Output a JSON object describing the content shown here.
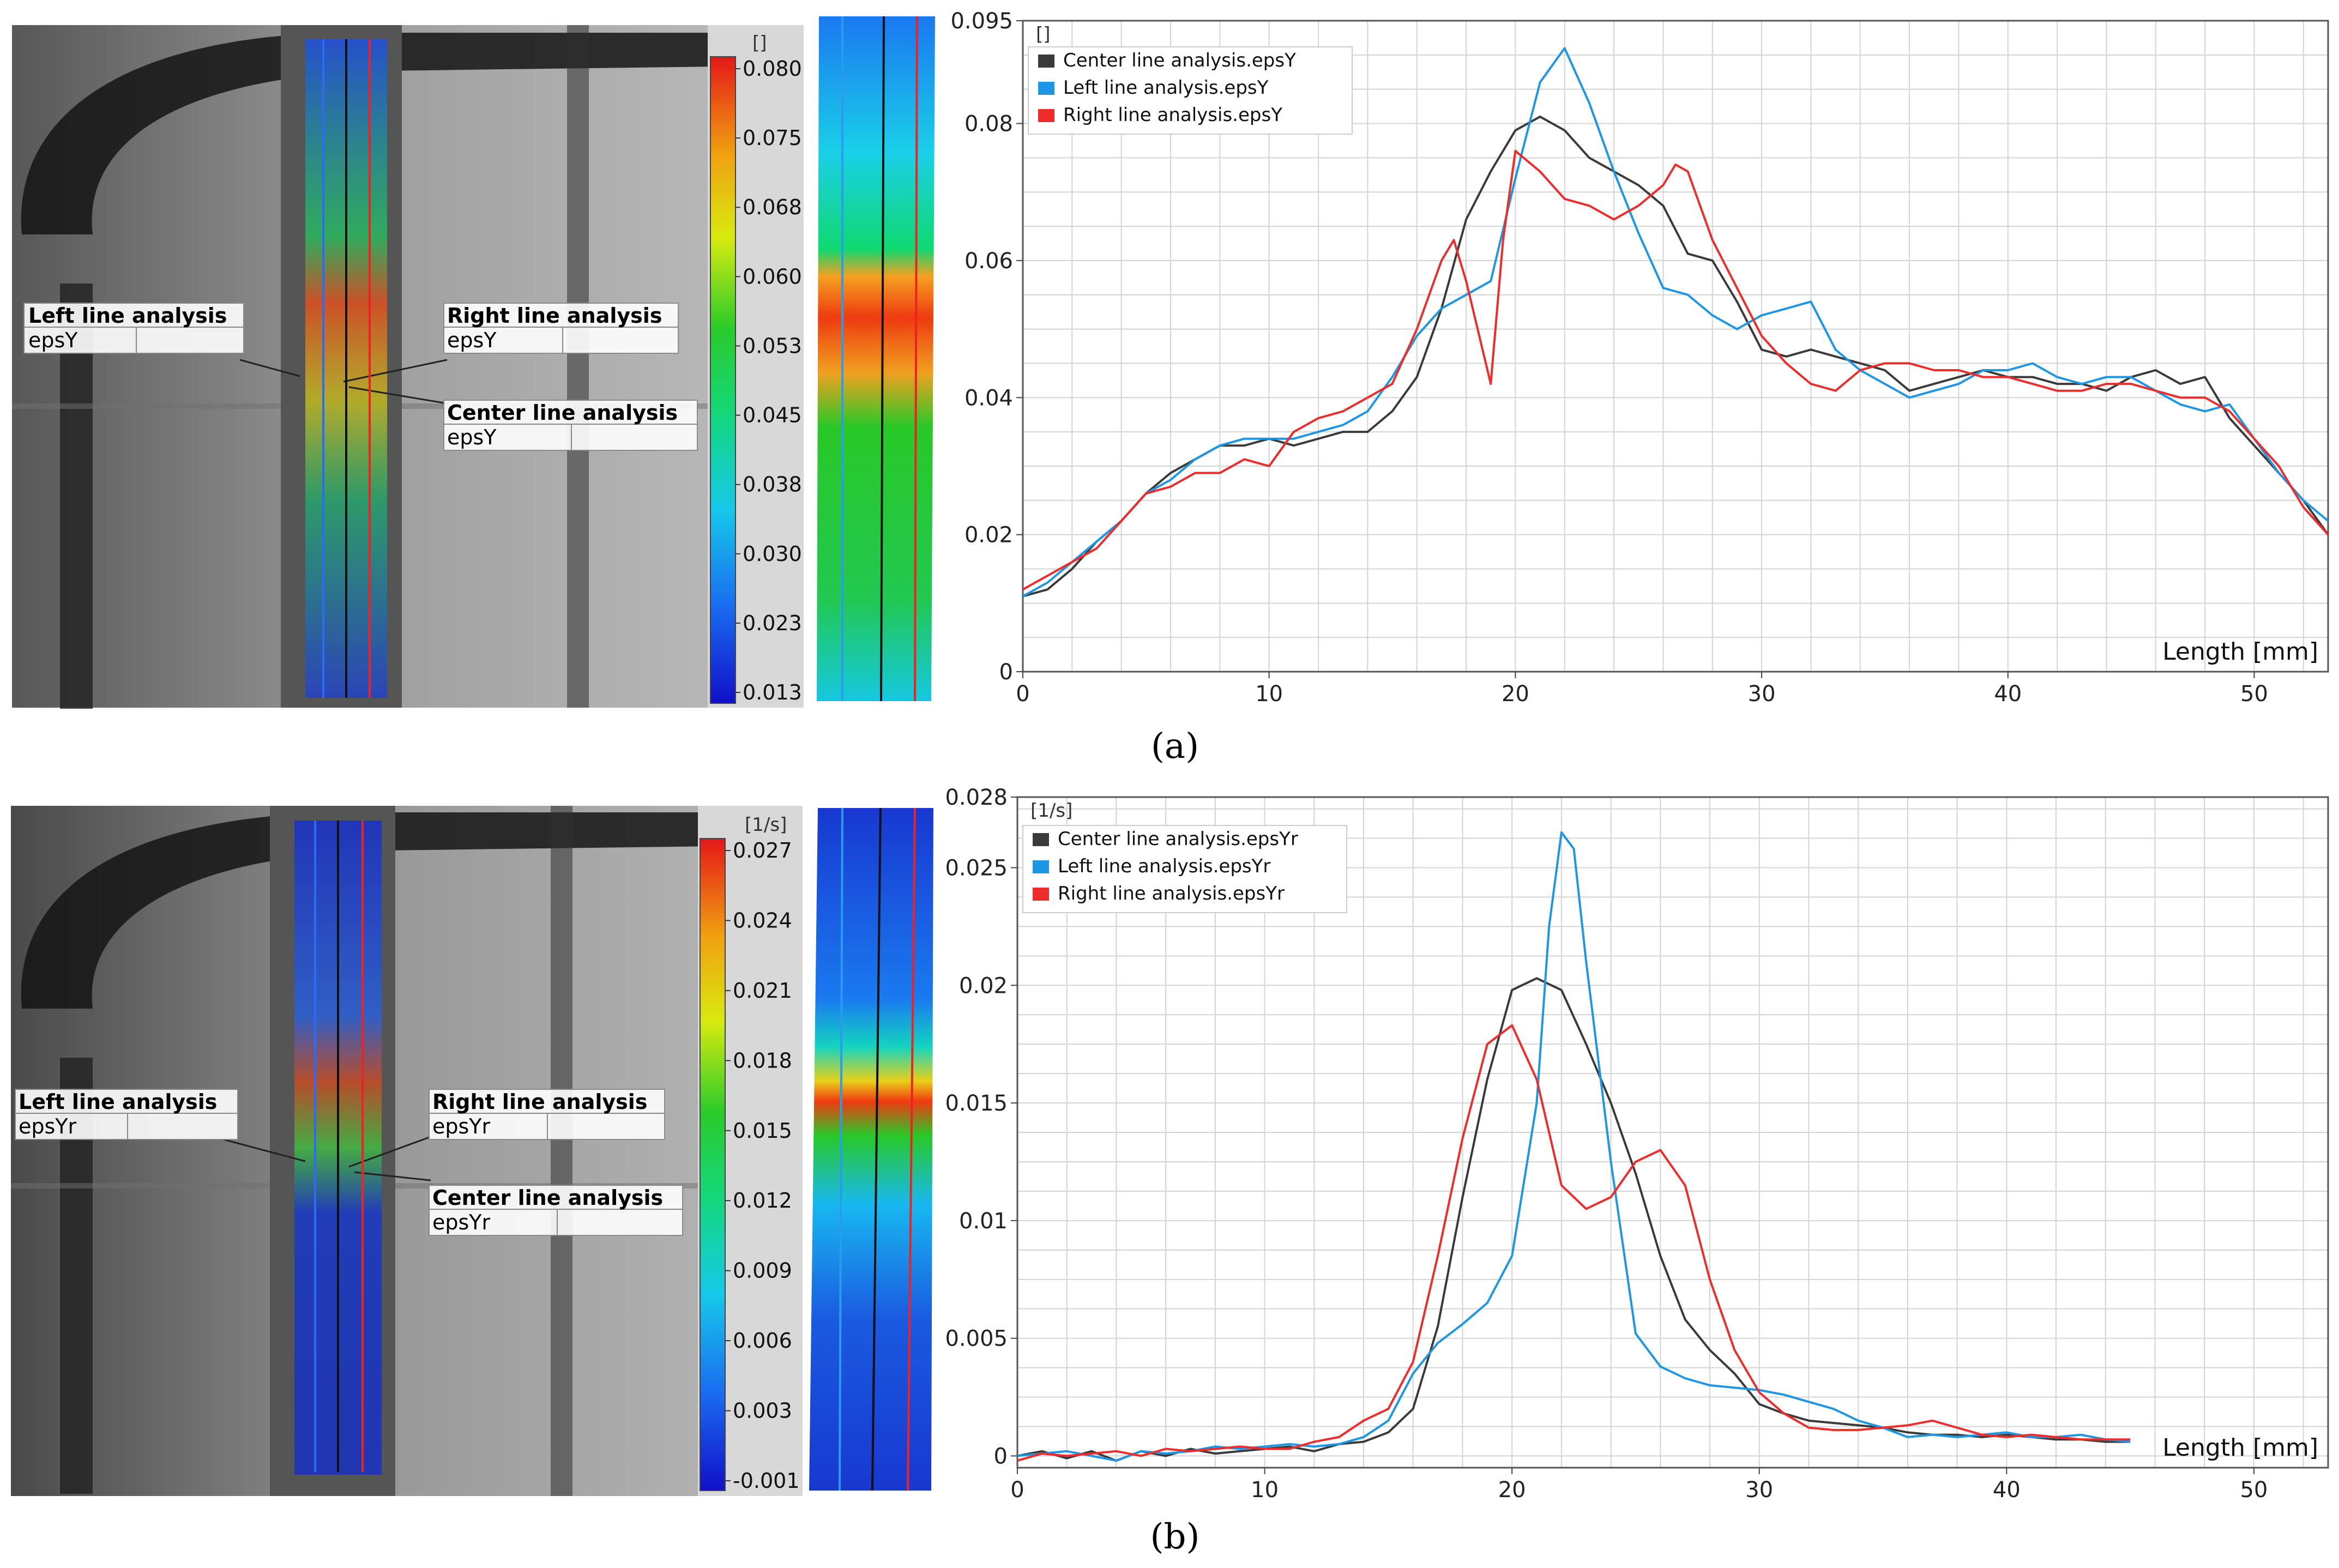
{
  "panels": [
    {
      "caption_letter": "a",
      "annotations": {
        "left": {
          "title": "Left line analysis",
          "value": "epsY"
        },
        "right": {
          "title": "Right line analysis",
          "value": "epsY"
        },
        "center": {
          "title": "Center line analysis",
          "value": "epsY"
        }
      },
      "colorbar": {
        "unit": "[]",
        "ticks": [
          "0.080",
          "0.075",
          "0.068",
          "0.060",
          "0.053",
          "0.045",
          "0.038",
          "0.030",
          "0.023",
          "0.013"
        ]
      },
      "chart_data": {
        "type": "line",
        "unit_label": "[]",
        "xlabel": "Length [mm]",
        "ylabel": "",
        "xlim": [
          0,
          53
        ],
        "ylim": [
          0,
          0.095
        ],
        "xticks": [
          0,
          10,
          20,
          30,
          40,
          50
        ],
        "xtick_labels": [
          "0",
          "10",
          "20",
          "30",
          "40",
          "50"
        ],
        "yticks": [
          0,
          0.02,
          0.04,
          0.06,
          0.08,
          0.095
        ],
        "ytick_labels": [
          "0",
          "0.02",
          "0.04",
          "0.06",
          "0.08",
          "0.095"
        ],
        "series": [
          {
            "name": "Center line analysis.epsY",
            "color": "#3a3a3a",
            "x": [
              0,
              1,
              2,
              3,
              4,
              5,
              6,
              7,
              8,
              9,
              10,
              11,
              12,
              13,
              14,
              15,
              16,
              17,
              18,
              19,
              20,
              21,
              22,
              23,
              24,
              25,
              26,
              27,
              28,
              29,
              30,
              31,
              32,
              33,
              34,
              35,
              36,
              37,
              38,
              39,
              40,
              41,
              42,
              43,
              44,
              45,
              46,
              47,
              48,
              49,
              50,
              51,
              52,
              53
            ],
            "y": [
              0.011,
              0.012,
              0.015,
              0.019,
              0.022,
              0.026,
              0.029,
              0.031,
              0.033,
              0.033,
              0.034,
              0.033,
              0.034,
              0.035,
              0.035,
              0.038,
              0.043,
              0.053,
              0.066,
              0.073,
              0.079,
              0.081,
              0.079,
              0.075,
              0.073,
              0.071,
              0.068,
              0.061,
              0.06,
              0.054,
              0.047,
              0.046,
              0.047,
              0.046,
              0.045,
              0.044,
              0.041,
              0.042,
              0.043,
              0.044,
              0.043,
              0.043,
              0.042,
              0.042,
              0.041,
              0.043,
              0.044,
              0.042,
              0.043,
              0.037,
              0.033,
              0.029,
              0.025,
              0.02
            ]
          },
          {
            "name": "Left line analysis.epsY",
            "color": "#1e96e6",
            "x": [
              0,
              1,
              2,
              3,
              4,
              5,
              6,
              7,
              8,
              9,
              10,
              11,
              12,
              13,
              14,
              15,
              16,
              17,
              18,
              19,
              20,
              21,
              22,
              23,
              24,
              25,
              26,
              27,
              28,
              29,
              30,
              31,
              32,
              33,
              34,
              35,
              36,
              37,
              38,
              39,
              40,
              41,
              42,
              43,
              44,
              45,
              46,
              47,
              48,
              49,
              50,
              51,
              52,
              53
            ],
            "y": [
              0.011,
              0.013,
              0.016,
              0.019,
              0.022,
              0.026,
              0.028,
              0.031,
              0.033,
              0.034,
              0.034,
              0.034,
              0.035,
              0.036,
              0.038,
              0.043,
              0.049,
              0.053,
              0.055,
              0.057,
              0.072,
              0.086,
              0.091,
              0.083,
              0.073,
              0.064,
              0.056,
              0.055,
              0.052,
              0.05,
              0.052,
              0.053,
              0.054,
              0.047,
              0.044,
              0.042,
              0.04,
              0.041,
              0.042,
              0.044,
              0.044,
              0.045,
              0.043,
              0.042,
              0.043,
              0.043,
              0.041,
              0.039,
              0.038,
              0.039,
              0.034,
              0.029,
              0.025,
              0.022
            ]
          },
          {
            "name": "Right line analysis.epsY",
            "color": "#ee2c2c",
            "x": [
              0,
              1,
              2,
              3,
              4,
              5,
              6,
              7,
              8,
              9,
              10,
              11,
              12,
              13,
              14,
              15,
              16,
              17,
              17.5,
              18,
              19,
              19.5,
              20,
              21,
              22,
              23,
              24,
              25,
              26,
              26.5,
              27,
              28,
              29,
              30,
              31,
              32,
              33,
              34,
              35,
              36,
              37,
              38,
              39,
              40,
              41,
              42,
              43,
              44,
              45,
              46,
              47,
              48,
              49,
              50,
              51,
              52,
              53
            ],
            "y": [
              0.012,
              0.014,
              0.016,
              0.018,
              0.022,
              0.026,
              0.027,
              0.029,
              0.029,
              0.031,
              0.03,
              0.035,
              0.037,
              0.038,
              0.04,
              0.042,
              0.05,
              0.06,
              0.063,
              0.057,
              0.042,
              0.063,
              0.076,
              0.073,
              0.069,
              0.068,
              0.066,
              0.068,
              0.071,
              0.074,
              0.073,
              0.063,
              0.056,
              0.049,
              0.045,
              0.042,
              0.041,
              0.044,
              0.045,
              0.045,
              0.044,
              0.044,
              0.043,
              0.043,
              0.042,
              0.041,
              0.041,
              0.042,
              0.042,
              0.041,
              0.04,
              0.04,
              0.038,
              0.034,
              0.03,
              0.024,
              0.02
            ]
          }
        ]
      }
    },
    {
      "caption_letter": "b",
      "annotations": {
        "left": {
          "title": "Left line analysis",
          "value": "epsYr"
        },
        "right": {
          "title": "Right line analysis",
          "value": "epsYr"
        },
        "center": {
          "title": "Center line analysis",
          "value": "epsYr"
        }
      },
      "colorbar": {
        "unit": "[1/s]",
        "ticks": [
          "0.027",
          "0.024",
          "0.021",
          "0.018",
          "0.015",
          "0.012",
          "0.009",
          "0.006",
          "0.003",
          "-0.001"
        ]
      },
      "chart_data": {
        "type": "line",
        "unit_label": "[1/s]",
        "xlabel": "Length [mm]",
        "ylabel": "",
        "xlim": [
          0,
          53
        ],
        "ylim": [
          -0.0005,
          0.028
        ],
        "xticks": [
          0,
          10,
          20,
          30,
          40,
          50
        ],
        "xtick_labels": [
          "0",
          "10",
          "20",
          "30",
          "40",
          "50"
        ],
        "yticks": [
          0,
          0.005,
          0.01,
          0.015,
          0.02,
          0.025,
          0.028
        ],
        "ytick_labels": [
          "0",
          "0.005",
          "0.01",
          "0.015",
          "0.02",
          "0.025",
          "0.028"
        ],
        "series": [
          {
            "name": "Center line analysis.epsYr",
            "color": "#3a3a3a",
            "x": [
              0,
              1,
              2,
              3,
              4,
              5,
              6,
              7,
              8,
              9,
              10,
              11,
              12,
              13,
              14,
              15,
              16,
              17,
              18,
              19,
              20,
              21,
              22,
              23,
              24,
              25,
              26,
              27,
              28,
              29,
              30,
              31,
              32,
              33,
              34,
              35,
              36,
              37,
              38,
              39,
              40,
              41,
              42,
              43,
              44,
              45
            ],
            "y": [
              0.0,
              0.0002,
              -0.0001,
              0.0002,
              -0.0002,
              0.0002,
              0.0,
              0.0003,
              0.0001,
              0.0002,
              0.0003,
              0.0004,
              0.0002,
              0.0005,
              0.0006,
              0.001,
              0.002,
              0.0055,
              0.011,
              0.016,
              0.0198,
              0.0203,
              0.0198,
              0.0175,
              0.015,
              0.012,
              0.0085,
              0.0058,
              0.0045,
              0.0035,
              0.0022,
              0.0018,
              0.0015,
              0.0014,
              0.0013,
              0.0012,
              0.001,
              0.0009,
              0.0009,
              0.0008,
              0.0009,
              0.0008,
              0.0007,
              0.0007,
              0.0006,
              0.0006
            ]
          },
          {
            "name": "Left line analysis.epsYr",
            "color": "#1e96e6",
            "x": [
              0,
              1,
              2,
              3,
              4,
              5,
              6,
              7,
              8,
              9,
              10,
              11,
              12,
              13,
              14,
              15,
              16,
              17,
              18,
              19,
              20,
              21,
              21.5,
              22,
              22.5,
              23,
              24,
              25,
              26,
              27,
              28,
              29,
              30,
              31,
              32,
              33,
              34,
              35,
              36,
              37,
              38,
              39,
              40,
              41,
              42,
              43,
              44,
              45
            ],
            "y": [
              0.0,
              0.0001,
              0.0002,
              0.0,
              -0.0002,
              0.0002,
              0.0001,
              0.0002,
              0.0004,
              0.0003,
              0.0004,
              0.0005,
              0.0004,
              0.0005,
              0.0008,
              0.0015,
              0.0035,
              0.0048,
              0.0056,
              0.0065,
              0.0085,
              0.015,
              0.0225,
              0.0265,
              0.0258,
              0.021,
              0.0125,
              0.0052,
              0.0038,
              0.0033,
              0.003,
              0.0029,
              0.0028,
              0.0026,
              0.0023,
              0.002,
              0.0015,
              0.0012,
              0.0008,
              0.0009,
              0.0008,
              0.0009,
              0.001,
              0.0008,
              0.0008,
              0.0009,
              0.0007,
              0.0006
            ]
          },
          {
            "name": "Right line analysis.epsYr",
            "color": "#ee2c2c",
            "x": [
              0,
              1,
              2,
              3,
              4,
              5,
              6,
              7,
              8,
              9,
              10,
              11,
              12,
              13,
              14,
              15,
              16,
              17,
              18,
              19,
              20,
              21,
              22,
              23,
              24,
              25,
              26,
              27,
              28,
              29,
              30,
              31,
              32,
              33,
              34,
              35,
              36,
              37,
              38,
              39,
              40,
              41,
              42,
              43,
              44,
              45
            ],
            "y": [
              -0.0002,
              0.0001,
              0.0,
              0.0001,
              0.0002,
              0.0,
              0.0003,
              0.0002,
              0.0003,
              0.0004,
              0.0003,
              0.0003,
              0.0006,
              0.0008,
              0.0015,
              0.002,
              0.004,
              0.0085,
              0.0135,
              0.0175,
              0.0183,
              0.016,
              0.0115,
              0.0105,
              0.011,
              0.0125,
              0.013,
              0.0115,
              0.0075,
              0.0045,
              0.0027,
              0.0018,
              0.0012,
              0.0011,
              0.0011,
              0.0012,
              0.0013,
              0.0015,
              0.0012,
              0.0009,
              0.0008,
              0.0009,
              0.0008,
              0.0007,
              0.0007,
              0.0007
            ]
          }
        ]
      }
    }
  ]
}
